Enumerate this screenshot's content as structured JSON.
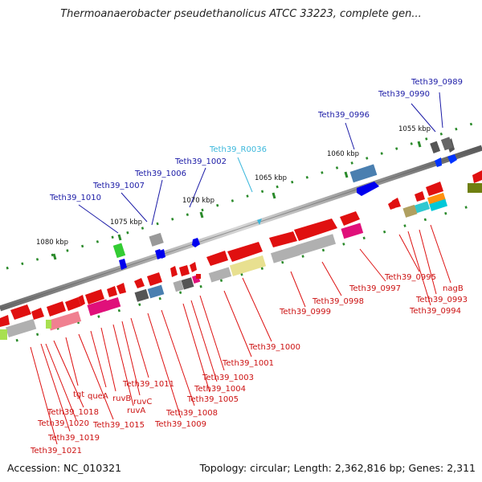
{
  "title": "Thermoanaerobacter pseudethanolicus ATCC 33223, complete gen...",
  "footer": {
    "accession": "Accession: NC_010321",
    "info": "Topology: circular; Length: 2,362,816 bp; Genes: 2,311"
  },
  "scale_labels": [
    "1055 kbp",
    "1060 kbp",
    "1065 kbp",
    "1070 kbp",
    "1075 kbp",
    "1080 kbp"
  ],
  "upper_labels": [
    "Teth39_0989",
    "Teth39_0990",
    "Teth39_0996",
    "Teth39_R0036",
    "Teth39_1002",
    "Teth39_1006",
    "Teth39_1007",
    "Teth39_1010"
  ],
  "lower_labels": [
    "nagB",
    "Teth39_0993",
    "Teth39_0994",
    "Teth39_0995",
    "Teth39_0997",
    "Teth39_0998",
    "Teth39_0999",
    "Teth39_1000",
    "Teth39_1001",
    "Teth39_1003",
    "Teth39_1004",
    "Teth39_1005",
    "Teth39_1008",
    "Teth39_1009",
    "Teth39_1011",
    "ruvC",
    "ruvA",
    "ruvB",
    "queA",
    "tgt",
    "Teth39_1015",
    "Teth39_1018",
    "Teth39_1020",
    "Teth39_1019",
    "Teth39_1021"
  ],
  "colors": {
    "upper_label": "#1a1aa6",
    "rna_label": "#3cb8dc",
    "lower_label": "#cc1111",
    "backbone": "#8a8a8a",
    "tick": "#2a8a2a"
  }
}
